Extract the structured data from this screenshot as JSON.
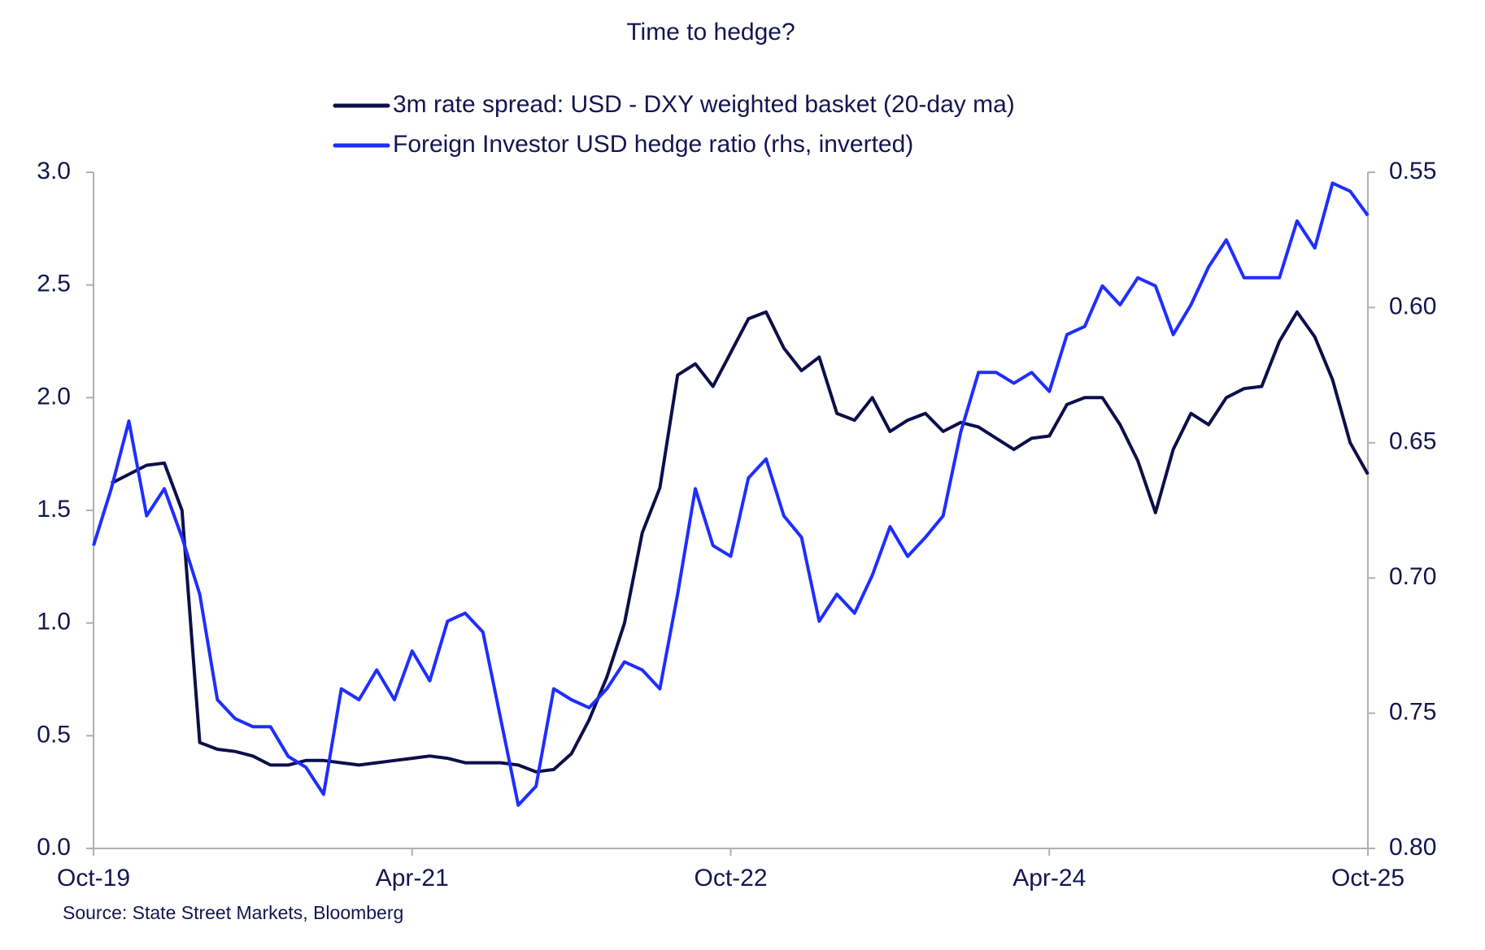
{
  "chart_data": {
    "type": "line",
    "title": "Time to hedge?",
    "source": "Source: State Street Markets, Bloomberg",
    "x": [
      "Oct-19",
      "Nov-19",
      "Dec-19",
      "Jan-20",
      "Feb-20",
      "Mar-20",
      "Apr-20",
      "May-20",
      "Jun-20",
      "Jul-20",
      "Aug-20",
      "Sep-20",
      "Oct-20",
      "Nov-20",
      "Dec-20",
      "Jan-21",
      "Feb-21",
      "Mar-21",
      "Apr-21",
      "May-21",
      "Jun-21",
      "Jul-21",
      "Aug-21",
      "Sep-21",
      "Oct-21",
      "Nov-21",
      "Dec-21",
      "Jan-22",
      "Feb-22",
      "Mar-22",
      "Apr-22",
      "May-22",
      "Jun-22",
      "Jul-22",
      "Aug-22",
      "Sep-22",
      "Oct-22",
      "Nov-22",
      "Dec-22",
      "Jan-23",
      "Feb-23",
      "Mar-23",
      "Apr-23",
      "May-23",
      "Jun-23",
      "Jul-23",
      "Aug-23",
      "Sep-23",
      "Oct-23",
      "Nov-23",
      "Dec-23",
      "Jan-24",
      "Feb-24",
      "Mar-24",
      "Apr-24",
      "May-24",
      "Jun-24",
      "Jul-24",
      "Aug-24",
      "Sep-24",
      "Oct-24",
      "Nov-24",
      "Dec-24",
      "Jan-25",
      "Feb-25",
      "Mar-25",
      "Apr-25",
      "May-25",
      "Jun-25",
      "Jul-25",
      "Aug-25",
      "Sep-25",
      "Oct-25"
    ],
    "xticks": [
      "Oct-19",
      "Apr-21",
      "Oct-22",
      "Apr-24",
      "Oct-25"
    ],
    "series": [
      {
        "name": "3m rate spread: USD - DXY weighted basket (20-day ma)",
        "color": "#0d0f4a",
        "values": [
          null,
          1.62,
          1.66,
          1.7,
          1.71,
          1.5,
          0.47,
          0.44,
          0.43,
          0.41,
          0.37,
          0.37,
          0.39,
          0.39,
          0.38,
          0.37,
          0.38,
          0.39,
          0.4,
          0.41,
          0.4,
          0.38,
          0.38,
          0.38,
          0.37,
          0.34,
          0.35,
          0.42,
          0.57,
          0.76,
          1.0,
          1.4,
          1.6,
          2.1,
          2.15,
          2.05,
          2.2,
          2.35,
          2.38,
          2.22,
          2.12,
          2.18,
          1.93,
          1.9,
          2.0,
          1.85,
          1.9,
          1.93,
          1.85,
          1.89,
          1.87,
          1.82,
          1.77,
          1.82,
          1.83,
          1.97,
          2.0,
          2.0,
          1.88,
          1.72,
          1.49,
          1.77,
          1.93,
          1.88,
          2.0,
          2.04,
          2.05,
          2.25,
          2.38,
          2.27,
          2.08,
          1.8,
          1.66
        ]
      },
      {
        "name": "Foreign Investor USD hedge ratio (rhs, inverted)",
        "color": "#1f2eff",
        "axis": "y2",
        "values": [
          0.688,
          0.667,
          0.642,
          0.677,
          0.667,
          0.685,
          0.706,
          0.745,
          0.752,
          0.755,
          0.755,
          0.766,
          0.77,
          0.78,
          0.741,
          0.745,
          0.734,
          0.745,
          0.727,
          0.738,
          0.716,
          0.713,
          0.72,
          0.752,
          0.784,
          0.777,
          0.741,
          0.745,
          0.748,
          0.741,
          0.731,
          0.734,
          0.741,
          0.706,
          0.667,
          0.688,
          0.692,
          0.663,
          0.656,
          0.677,
          0.685,
          0.716,
          0.706,
          0.713,
          0.699,
          0.681,
          0.692,
          0.685,
          0.677,
          0.646,
          0.624,
          0.624,
          0.628,
          0.624,
          0.631,
          0.61,
          0.607,
          0.592,
          0.599,
          0.589,
          0.592,
          0.61,
          0.599,
          0.585,
          0.575,
          0.589,
          0.589,
          0.589,
          0.568,
          0.578,
          0.554,
          0.557,
          0.566
        ]
      }
    ],
    "ylim": [
      0,
      3
    ],
    "yticks": [
      {
        "value": 0,
        "label": "0.0"
      },
      0.5,
      {
        "value": 1,
        "label": "1.0"
      },
      1.5,
      {
        "value": 2,
        "label": "2.0"
      },
      2.5,
      {
        "value": 3,
        "label": "3.0"
      }
    ],
    "y2lim": [
      0.8,
      0.55
    ],
    "y2ticks": [
      {
        "value": 0.8,
        "label": "0.80"
      },
      0.75,
      {
        "value": 0.7,
        "label": "0.70"
      },
      0.65,
      {
        "value": 0.6,
        "label": "0.60"
      },
      0.55
    ],
    "legend": "top"
  }
}
